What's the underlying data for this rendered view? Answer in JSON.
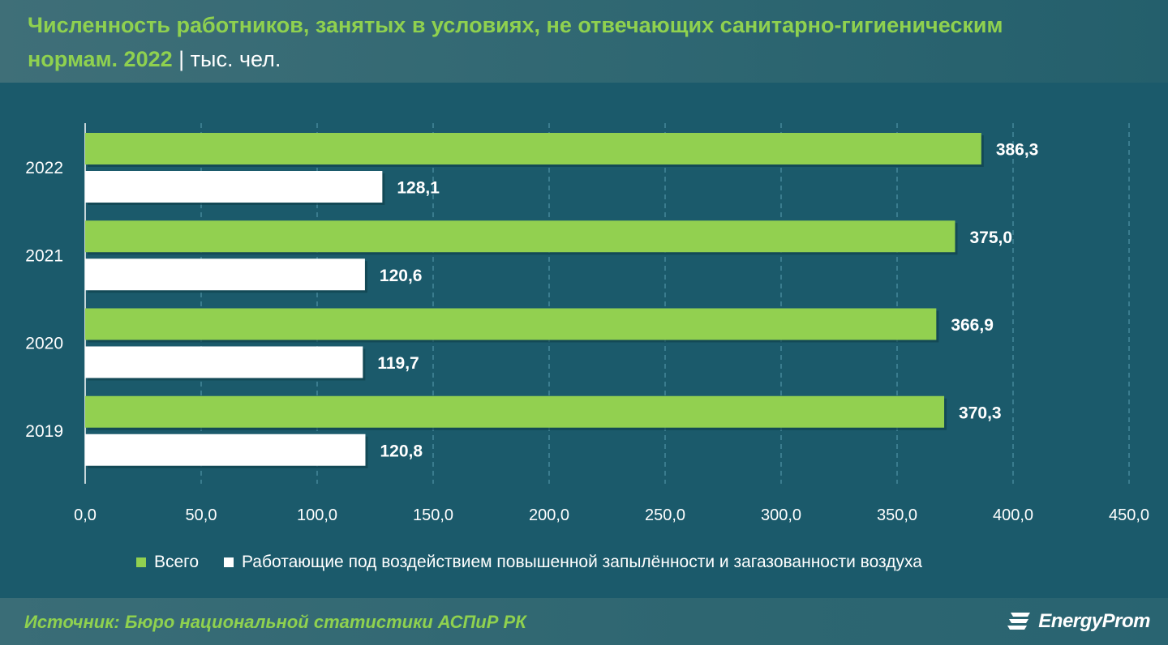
{
  "header": {
    "title_line1": "Численность работников, занятых в условиях, не отвечающих санитарно-гигиеническим",
    "title_line2": "нормам. 2022",
    "unit": "тыс. чел."
  },
  "colors": {
    "background": "#1b5a6b",
    "series_total": "#92d050",
    "series_dust": "#ffffff",
    "title_green": "#8fd14f"
  },
  "chart_data": {
    "type": "bar",
    "orientation": "horizontal",
    "categories": [
      "2022",
      "2021",
      "2020",
      "2019"
    ],
    "series": [
      {
        "name": "Всего",
        "values": [
          386.3,
          375.0,
          366.9,
          370.3
        ],
        "labels": [
          "386,3",
          "375,0",
          "366,9",
          "370,3"
        ]
      },
      {
        "name": "Работающие под воздействием повышенной запылённости и загазованности воздуха",
        "values": [
          128.1,
          120.6,
          119.7,
          120.8
        ],
        "labels": [
          "128,1",
          "120,6",
          "119,7",
          "120,8"
        ]
      }
    ],
    "xlim": [
      0,
      450
    ],
    "xticks": [
      0,
      50,
      100,
      150,
      200,
      250,
      300,
      350,
      400,
      450
    ],
    "xtick_labels": [
      "0,0",
      "50,0",
      "100,0",
      "150,0",
      "200,0",
      "250,0",
      "300,0",
      "350,0",
      "400,0",
      "450,0"
    ],
    "grid": "vertical dashed",
    "legend_position": "bottom"
  },
  "footer": {
    "source": "Источник: Бюро национальной статистики АСПиР РК",
    "brand": "EnergyProm",
    "brand_icon": "energyprom-logo-icon"
  }
}
